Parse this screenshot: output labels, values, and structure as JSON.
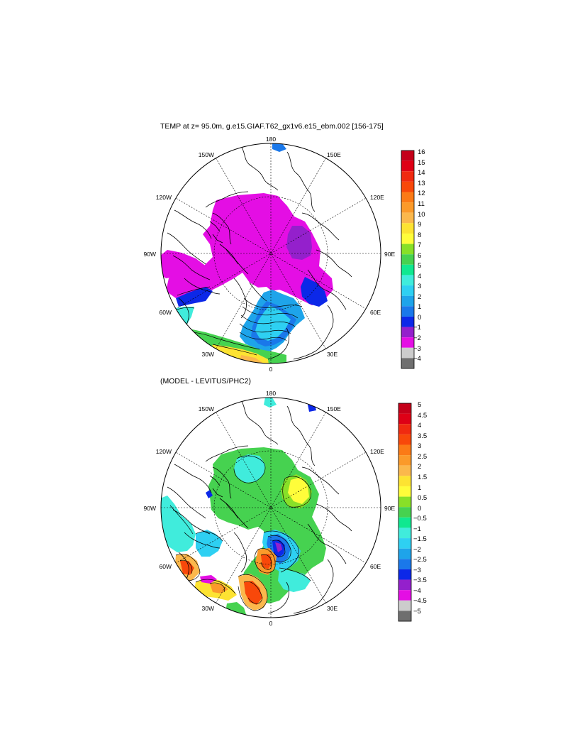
{
  "panels": [
    {
      "title": "TEMP at z=  95.0m, g.e15.GIAF.T62_gx1v6.e15_ebm.002 [156-175]",
      "projection": "north polar stereographic",
      "longitude_labels": [
        "180",
        "150E",
        "120E",
        "90E",
        "60E",
        "30E",
        "0",
        "30W",
        "60W",
        "90W",
        "120W",
        "150W"
      ],
      "colorbar_labels": [
        "16",
        "15",
        "14",
        "13",
        "12",
        "11",
        "10",
        "9",
        "8",
        "7",
        "6",
        "5",
        "4",
        "3",
        "2",
        "1",
        "0",
        "−1",
        "−2",
        "−3",
        "−4"
      ],
      "colorbar_colors": [
        "#c4001a",
        "#de0016",
        "#f02a10",
        "#f8480a",
        "#fb7a16",
        "#fb9a2a",
        "#fbb84c",
        "#fde332",
        "#fffd3a",
        "#88e028",
        "#46d250",
        "#10e890",
        "#40ecdc",
        "#2ed0f2",
        "#1ea4ea",
        "#1a78ea",
        "#0c28e8",
        "#9420cc",
        "#e40ee4",
        "#cccccc",
        "#6f6f6f"
      ]
    },
    {
      "title": "(MODEL - LEVITUS/PHC2)",
      "projection": "north polar stereographic",
      "longitude_labels": [
        "180",
        "150E",
        "120E",
        "90E",
        "60E",
        "30E",
        "0",
        "30W",
        "60W",
        "90W",
        "120W",
        "150W"
      ],
      "colorbar_labels": [
        "5",
        "4.5",
        "4",
        "3.5",
        "3",
        "2.5",
        "2",
        "1.5",
        "1",
        "0.5",
        "0",
        "−0.5",
        "−1",
        "−1.5",
        "−2",
        "−2.5",
        "−3",
        "−3.5",
        "−4",
        "−4.5",
        "−5"
      ],
      "colorbar_colors": [
        "#c4001a",
        "#de0016",
        "#f02a10",
        "#f8480a",
        "#fb7a16",
        "#fb9a2a",
        "#fbb84c",
        "#fde332",
        "#fffd3a",
        "#88e028",
        "#46d250",
        "#10e890",
        "#40ecdc",
        "#2ed0f2",
        "#1ea4ea",
        "#1a78ea",
        "#0c28e8",
        "#9420cc",
        "#e40ee4",
        "#cccccc",
        "#6f6f6f"
      ]
    }
  ]
}
